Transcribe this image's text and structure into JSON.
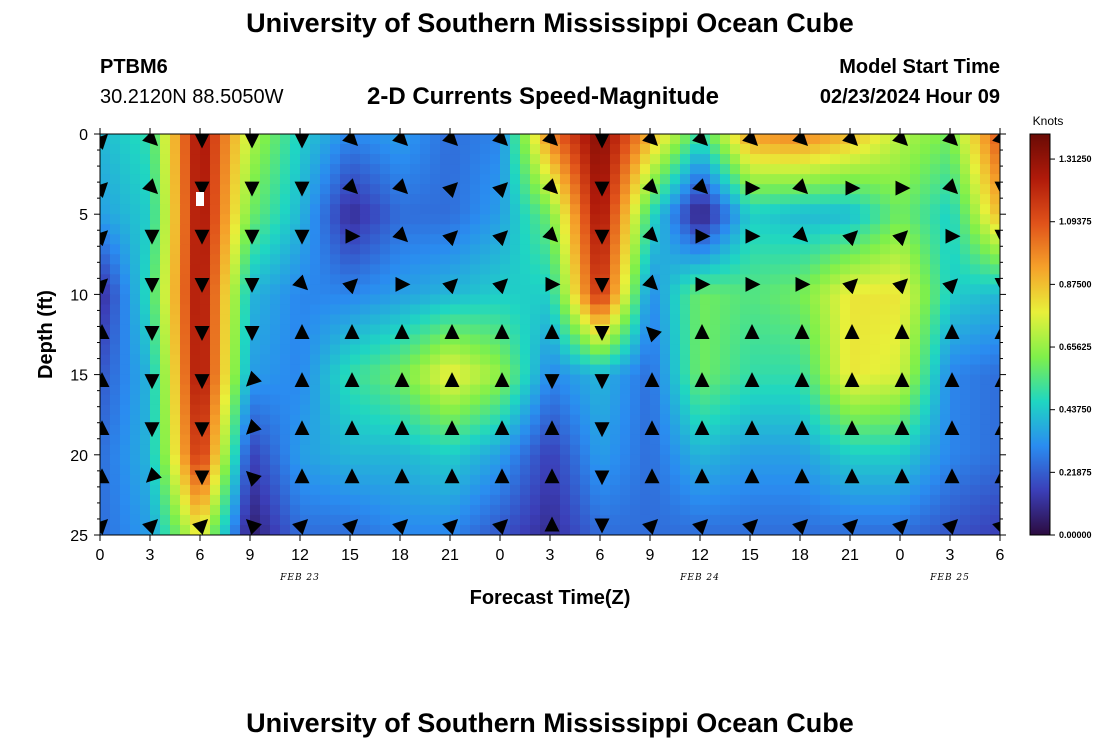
{
  "page": {
    "title": "University of Southern Mississippi Ocean Cube",
    "station_id": "PTBM6",
    "station_coords": "30.2120N  88.5050W",
    "plot_title": "2-D Currents Speed-Magnitude",
    "model_start_label": "Model Start Time",
    "model_start_value": "02/23/2024 Hour 09"
  },
  "chart_data": {
    "type": "heatmap",
    "title": "2-D Currents Speed-Magnitude",
    "xlabel": "Forecast Time(Z)",
    "ylabel": "Depth (ft)",
    "x_tick_labels": [
      "0",
      "3",
      "6",
      "9",
      "12",
      "15",
      "18",
      "21",
      "0",
      "3",
      "6",
      "9",
      "12",
      "15",
      "18",
      "21",
      "0",
      "3",
      "6"
    ],
    "date_labels": [
      {
        "label": "FEB 23",
        "x_index": 4
      },
      {
        "label": "FEB 24",
        "x_index": 12
      },
      {
        "label": "FEB 25",
        "x_index": 17
      }
    ],
    "y_ticks": [
      0,
      5,
      10,
      15,
      20,
      25
    ],
    "ylim": [
      0,
      25
    ],
    "y_inverted": true,
    "colorbar": {
      "unit": "Knots",
      "ticks": [
        "0.00000",
        "0.21875",
        "0.43750",
        "0.65625",
        "0.87500",
        "1.09375",
        "1.31250"
      ],
      "range": [
        0,
        1.4
      ],
      "colors": [
        "#2c0b3f",
        "#3b3fb8",
        "#2a8cf0",
        "#1fd6c2",
        "#7ff04a",
        "#e8f03a",
        "#f5a12a",
        "#e0521a",
        "#b01a0a",
        "#6a0b05"
      ]
    },
    "speed_grid": {
      "depths_ft": [
        0,
        5,
        10,
        15,
        20,
        25
      ],
      "times_index": [
        0,
        1,
        2,
        3,
        4,
        5,
        6,
        7,
        8,
        9,
        10,
        11,
        12,
        13,
        14,
        15,
        16,
        17,
        18
      ],
      "values": [
        [
          0.4,
          0.5,
          1.3,
          0.7,
          0.45,
          0.3,
          0.35,
          0.25,
          0.3,
          1.0,
          1.35,
          0.9,
          0.5,
          0.95,
          1.0,
          0.9,
          0.7,
          0.6,
          1.1
        ],
        [
          0.35,
          0.45,
          1.3,
          0.6,
          0.4,
          0.1,
          0.25,
          0.25,
          0.35,
          0.6,
          1.3,
          0.5,
          0.05,
          0.45,
          0.4,
          0.4,
          0.6,
          0.45,
          0.9
        ],
        [
          0.1,
          0.5,
          1.3,
          0.4,
          0.3,
          0.3,
          0.35,
          0.4,
          0.45,
          0.45,
          1.2,
          0.3,
          0.6,
          0.55,
          0.6,
          0.8,
          0.8,
          0.45,
          0.4
        ],
        [
          0.2,
          0.4,
          1.3,
          0.35,
          0.3,
          0.5,
          0.6,
          0.8,
          0.65,
          0.3,
          0.4,
          0.25,
          0.6,
          0.5,
          0.5,
          0.8,
          0.75,
          0.3,
          0.25
        ],
        [
          0.25,
          0.4,
          1.2,
          0.15,
          0.35,
          0.4,
          0.4,
          0.45,
          0.35,
          0.15,
          0.35,
          0.25,
          0.4,
          0.35,
          0.35,
          0.45,
          0.45,
          0.3,
          0.25
        ],
        [
          0.25,
          0.35,
          0.8,
          0.05,
          0.25,
          0.25,
          0.3,
          0.3,
          0.2,
          0.1,
          0.25,
          0.25,
          0.25,
          0.25,
          0.25,
          0.25,
          0.25,
          0.2,
          0.15
        ]
      ]
    },
    "vectors": {
      "depths_ft": [
        0,
        3,
        6,
        9,
        12,
        15,
        18,
        21,
        24
      ],
      "times_index": [
        0,
        1,
        2,
        3,
        4,
        5,
        6,
        7,
        8,
        9,
        10,
        11,
        12,
        13,
        14,
        15,
        16,
        17,
        18
      ],
      "direction_deg": [
        [
          45,
          135,
          180,
          180,
          180,
          135,
          135,
          135,
          135,
          135,
          180,
          135,
          135,
          135,
          135,
          135,
          135,
          135,
          135
        ],
        [
          45,
          135,
          180,
          180,
          180,
          135,
          135,
          45,
          45,
          135,
          180,
          135,
          135,
          90,
          135,
          90,
          90,
          135,
          180
        ],
        [
          45,
          180,
          180,
          180,
          180,
          90,
          135,
          45,
          45,
          135,
          180,
          135,
          90,
          90,
          135,
          45,
          45,
          90,
          180
        ],
        [
          45,
          180,
          180,
          180,
          135,
          45,
          90,
          45,
          45,
          90,
          180,
          135,
          90,
          90,
          90,
          45,
          45,
          45,
          180
        ],
        [
          0,
          180,
          180,
          180,
          0,
          0,
          0,
          0,
          0,
          0,
          180,
          315,
          0,
          0,
          0,
          0,
          0,
          0,
          0
        ],
        [
          0,
          180,
          180,
          225,
          0,
          0,
          0,
          0,
          0,
          180,
          180,
          0,
          0,
          0,
          0,
          0,
          0,
          0,
          0
        ],
        [
          0,
          180,
          180,
          225,
          0,
          0,
          0,
          0,
          0,
          0,
          180,
          0,
          0,
          0,
          0,
          0,
          0,
          0,
          0
        ],
        [
          0,
          225,
          180,
          315,
          0,
          0,
          0,
          0,
          0,
          0,
          180,
          0,
          0,
          0,
          0,
          0,
          0,
          0,
          0
        ],
        [
          45,
          45,
          45,
          315,
          45,
          45,
          45,
          45,
          45,
          0,
          180,
          45,
          45,
          45,
          45,
          45,
          45,
          45,
          45
        ]
      ]
    }
  }
}
